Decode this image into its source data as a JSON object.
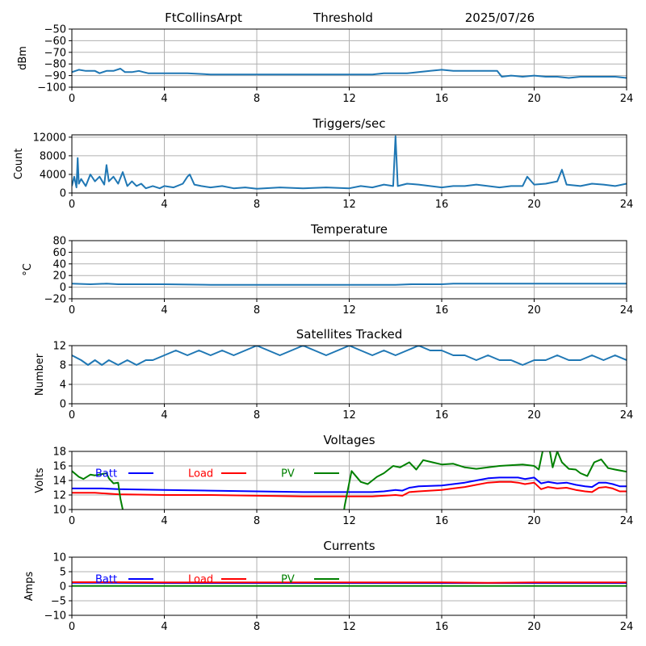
{
  "header": {
    "station": "FtCollinsArpt",
    "mode": "Threshold",
    "date": "2025/07/26"
  },
  "colors": {
    "series": "#1f77b4",
    "batt": "#0000ff",
    "load": "#ff0000",
    "pv": "#008000",
    "grid": "#b0b0b0"
  },
  "chart_data": [
    {
      "type": "line",
      "title": "",
      "ylabel": "dBm",
      "xlim": [
        0,
        24
      ],
      "ylim": [
        -100,
        -50
      ],
      "xticks": [
        0,
        4,
        8,
        12,
        16,
        20,
        24
      ],
      "yticks": [
        -100,
        -90,
        -80,
        -70,
        -60,
        -50
      ],
      "grid": true,
      "series": [
        {
          "x": [
            0,
            0.3,
            0.6,
            1.0,
            1.2,
            1.5,
            1.8,
            2.1,
            2.3,
            2.6,
            2.9,
            3.1,
            3.3,
            4,
            5,
            6,
            7,
            8,
            9,
            10,
            11,
            12,
            12.5,
            13,
            13.5,
            14,
            14.5,
            15,
            15.5,
            16,
            16.5,
            17,
            17.5,
            18.0,
            18.4,
            18.6,
            19,
            19.5,
            20,
            20.5,
            21,
            21.5,
            22,
            22.5,
            23,
            23.5,
            24
          ],
          "y": [
            -87,
            -85,
            -86,
            -86,
            -88,
            -86,
            -86,
            -84,
            -87,
            -87,
            -86,
            -87,
            -88,
            -88,
            -88,
            -89,
            -89,
            -89,
            -89,
            -89,
            -89,
            -89,
            -89,
            -89,
            -88,
            -88,
            -88,
            -87,
            -86,
            -85,
            -86,
            -86,
            -86,
            -86,
            -86,
            -91,
            -90,
            -91,
            -90,
            -91,
            -91,
            -92,
            -91,
            -91,
            -91,
            -91,
            -92
          ]
        }
      ]
    },
    {
      "type": "line",
      "title": "Triggers/sec",
      "ylabel": "Count",
      "xlim": [
        0,
        24
      ],
      "ylim": [
        0,
        12500
      ],
      "xticks": [
        0,
        4,
        8,
        12,
        16,
        20,
        24
      ],
      "yticks": [
        0,
        4000,
        8000,
        12000
      ],
      "grid": true,
      "series": [
        {
          "x": [
            0,
            0.1,
            0.2,
            0.25,
            0.3,
            0.4,
            0.6,
            0.8,
            1.0,
            1.2,
            1.4,
            1.5,
            1.6,
            1.8,
            2.0,
            2.2,
            2.4,
            2.6,
            2.8,
            3.0,
            3.2,
            3.5,
            3.8,
            4.0,
            4.4,
            4.8,
            5.0,
            5.1,
            5.3,
            5.6,
            6.0,
            6.5,
            7.0,
            7.5,
            8.0,
            9.0,
            10.0,
            11.0,
            12.0,
            12.5,
            13.0,
            13.5,
            13.9,
            14.0,
            14.1,
            14.5,
            15.0,
            15.5,
            16.0,
            16.5,
            17.0,
            17.5,
            18.0,
            18.5,
            19.0,
            19.5,
            19.7,
            20.0,
            20.5,
            21.0,
            21.2,
            21.4,
            22.0,
            22.5,
            23.0,
            23.5,
            24.0
          ],
          "y": [
            1500,
            3500,
            1200,
            7500,
            2000,
            3000,
            1500,
            4000,
            2500,
            3500,
            1800,
            6000,
            2500,
            3500,
            2000,
            4500,
            1500,
            2500,
            1500,
            2000,
            1000,
            1500,
            1000,
            1500,
            1200,
            2000,
            3500,
            4000,
            1800,
            1500,
            1200,
            1500,
            1000,
            1200,
            900,
            1200,
            1000,
            1200,
            1000,
            1500,
            1200,
            1800,
            1500,
            12200,
            1500,
            2000,
            1800,
            1500,
            1200,
            1500,
            1500,
            1800,
            1500,
            1200,
            1500,
            1500,
            3500,
            1800,
            2000,
            2500,
            5000,
            1800,
            1500,
            2000,
            1800,
            1500,
            2000
          ]
        }
      ]
    },
    {
      "type": "line",
      "title": "Temperature",
      "ylabel": "°C",
      "xlim": [
        0,
        24
      ],
      "ylim": [
        -20,
        80
      ],
      "xticks": [
        0,
        4,
        8,
        12,
        16,
        20,
        24
      ],
      "yticks": [
        -20,
        0,
        20,
        40,
        60,
        80
      ],
      "grid": true,
      "series": [
        {
          "x": [
            0,
            0.8,
            1.5,
            2.0,
            4.0,
            6.0,
            8.0,
            10.0,
            12.0,
            14.0,
            14.7,
            16.0,
            16.5,
            18.0,
            20.0,
            22.0,
            24.0
          ],
          "y": [
            6,
            5,
            6,
            5,
            5,
            4,
            4,
            4,
            4,
            4,
            5,
            5,
            6,
            6,
            6,
            6,
            6
          ]
        }
      ]
    },
    {
      "type": "line",
      "title": "Satellites Tracked",
      "ylabel": "Number",
      "xlim": [
        0,
        24
      ],
      "ylim": [
        0,
        12
      ],
      "xticks": [
        0,
        4,
        8,
        12,
        16,
        20,
        24
      ],
      "yticks": [
        0,
        4,
        8,
        12
      ],
      "grid": true,
      "series": [
        {
          "x": [
            0,
            0.4,
            0.7,
            1.0,
            1.3,
            1.6,
            2.0,
            2.4,
            2.8,
            3.2,
            3.5,
            4.0,
            4.5,
            5.0,
            5.5,
            6.0,
            6.5,
            7.0,
            7.5,
            8.0,
            8.5,
            9.0,
            9.5,
            10.0,
            10.5,
            11.0,
            11.5,
            12.0,
            12.5,
            13.0,
            13.5,
            14.0,
            14.5,
            15.0,
            15.5,
            16.0,
            16.5,
            17.0,
            17.5,
            18.0,
            18.5,
            19.0,
            19.5,
            20.0,
            20.5,
            21.0,
            21.5,
            22.0,
            22.5,
            23.0,
            23.5,
            24.0
          ],
          "y": [
            10,
            9,
            8,
            9,
            8,
            9,
            8,
            9,
            8,
            9,
            9,
            10,
            11,
            10,
            11,
            10,
            11,
            10,
            11,
            12,
            11,
            10,
            11,
            12,
            11,
            10,
            11,
            12,
            11,
            10,
            11,
            10,
            11,
            12,
            11,
            11,
            10,
            10,
            9,
            10,
            9,
            9,
            8,
            9,
            9,
            10,
            9,
            9,
            10,
            9,
            10,
            9
          ]
        }
      ]
    },
    {
      "type": "line",
      "title": "Voltages",
      "ylabel": "Volts",
      "xlim": [
        0,
        24
      ],
      "ylim": [
        10,
        18
      ],
      "xticks": [
        0,
        4,
        8,
        12,
        16,
        20,
        24
      ],
      "yticks": [
        10,
        12,
        14,
        16,
        18
      ],
      "grid": true,
      "legend": "top-left",
      "series": [
        {
          "name": "Batt",
          "x": [
            0,
            1,
            1.3,
            2,
            4,
            6,
            8,
            10,
            11,
            12,
            13,
            13.5,
            14,
            14.3,
            14.6,
            15,
            16,
            16.5,
            17,
            17.5,
            18,
            18.5,
            19,
            19.3,
            19.6,
            20,
            20.3,
            20.6,
            21,
            21.4,
            21.8,
            22.2,
            22.5,
            22.8,
            23.1,
            23.4,
            23.7,
            24
          ],
          "y": [
            12.9,
            12.9,
            12.9,
            12.8,
            12.7,
            12.6,
            12.5,
            12.4,
            12.4,
            12.4,
            12.4,
            12.5,
            12.7,
            12.6,
            13.0,
            13.2,
            13.3,
            13.5,
            13.7,
            14.0,
            14.3,
            14.4,
            14.4,
            14.4,
            14.2,
            14.4,
            13.6,
            13.8,
            13.6,
            13.7,
            13.4,
            13.2,
            13.1,
            13.7,
            13.7,
            13.5,
            13.2,
            13.2
          ]
        },
        {
          "name": "Load",
          "x": [
            0,
            1,
            2,
            4,
            6,
            8,
            10,
            12,
            13,
            13.5,
            14,
            14.3,
            14.6,
            15,
            16,
            16.5,
            17,
            17.5,
            18,
            18.5,
            19,
            19.3,
            19.6,
            20,
            20.3,
            20.6,
            21,
            21.4,
            21.8,
            22.2,
            22.5,
            22.8,
            23.1,
            23.4,
            23.7,
            24
          ],
          "y": [
            12.3,
            12.3,
            12.1,
            12.0,
            12.0,
            11.9,
            11.8,
            11.8,
            11.8,
            11.9,
            12.0,
            11.9,
            12.4,
            12.5,
            12.7,
            12.9,
            13.1,
            13.4,
            13.7,
            13.8,
            13.8,
            13.7,
            13.5,
            13.7,
            12.8,
            13.1,
            12.9,
            13.0,
            12.7,
            12.5,
            12.4,
            13.0,
            13.1,
            12.9,
            12.5,
            12.5
          ]
        },
        {
          "name": "PV",
          "x": [
            0,
            0.3,
            0.5,
            0.8,
            1.0,
            1.5,
            1.6,
            1.8,
            2.0,
            2.1,
            2.2,
            2.3,
            11.7,
            11.8,
            12.1,
            12.5,
            12.8,
            13.2,
            13.5,
            13.9,
            14.2,
            14.6,
            14.9,
            15.2,
            15.6,
            16,
            16.5,
            17,
            17.5,
            18,
            18.5,
            19,
            19.5,
            20,
            20.2,
            20.4,
            20.6,
            20.8,
            21.0,
            21.2,
            21.5,
            21.8,
            22.0,
            22.3,
            22.6,
            22.9,
            23.2,
            23.5,
            24
          ],
          "y": [
            15.3,
            14.5,
            14.2,
            14.8,
            14.7,
            15.0,
            14.3,
            13.6,
            13.7,
            11.5,
            10.0,
            8.0,
            8.0,
            10.5,
            15.3,
            13.8,
            13.5,
            14.5,
            15.0,
            16.0,
            15.8,
            16.5,
            15.5,
            16.8,
            16.5,
            16.2,
            16.3,
            15.8,
            15.6,
            15.8,
            16.0,
            16.1,
            16.2,
            16.0,
            15.5,
            18.5,
            19.5,
            15.8,
            18.0,
            16.5,
            15.6,
            15.5,
            15.0,
            14.6,
            16.5,
            16.9,
            15.7,
            15.5,
            15.2
          ]
        }
      ]
    },
    {
      "type": "line",
      "title": "Currents",
      "ylabel": "Amps",
      "xlim": [
        0,
        24
      ],
      "ylim": [
        -10,
        10
      ],
      "xticks": [
        0,
        4,
        8,
        12,
        16,
        20,
        24
      ],
      "yticks": [
        -10,
        -5,
        0,
        5,
        10
      ],
      "grid": true,
      "legend": "top-left",
      "series": [
        {
          "name": "Batt",
          "x": [
            0,
            4,
            8,
            12,
            16,
            20,
            24
          ],
          "y": [
            1.2,
            1.1,
            1.1,
            1.1,
            1.1,
            1.1,
            1.1
          ]
        },
        {
          "name": "Load",
          "x": [
            0,
            2,
            4,
            8,
            12,
            16,
            18,
            20,
            24
          ],
          "y": [
            1.4,
            1.4,
            1.3,
            1.3,
            1.3,
            1.3,
            1.2,
            1.3,
            1.3
          ]
        },
        {
          "name": "PV",
          "x": [
            0,
            4,
            8,
            12,
            16,
            20,
            24
          ],
          "y": [
            0.1,
            0.1,
            0.1,
            0.1,
            0.1,
            0.1,
            0.1
          ]
        }
      ]
    }
  ]
}
